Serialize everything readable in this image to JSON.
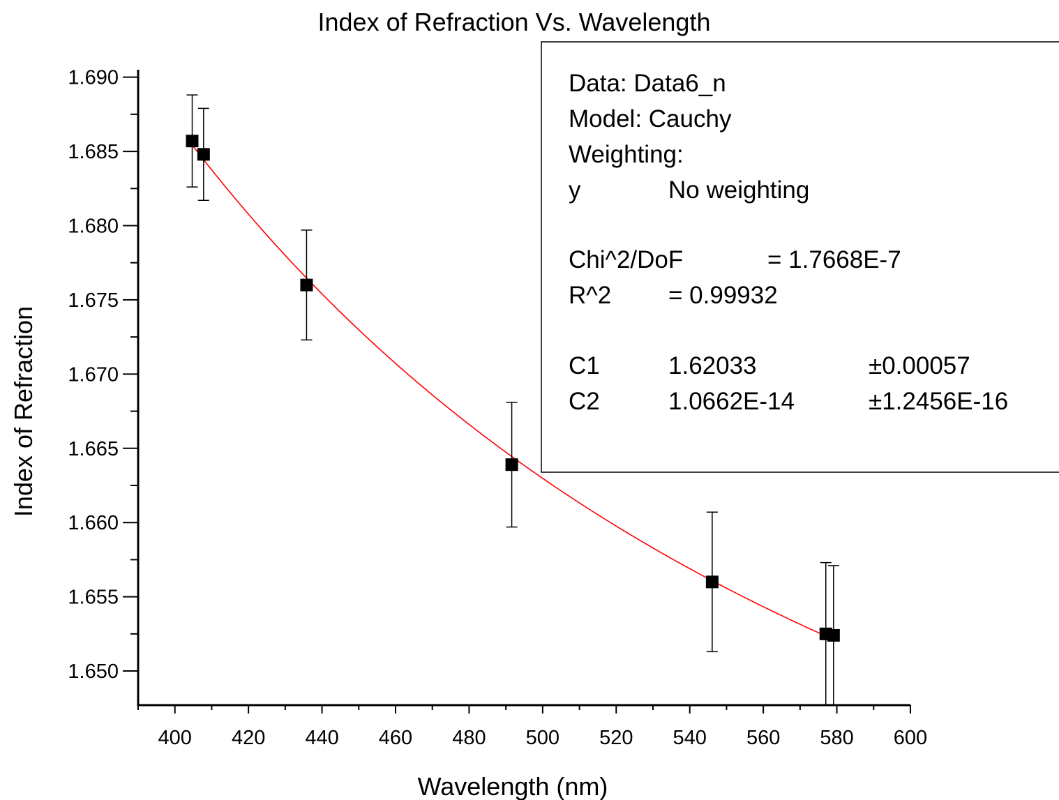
{
  "chart_data": {
    "type": "scatter",
    "title": "Index of Refraction Vs. Wavelength",
    "xlabel": "Wavelength (nm)",
    "ylabel": "Index of Refraction",
    "xlim": [
      390,
      600
    ],
    "ylim": [
      1.6477,
      1.6905
    ],
    "x_ticks": [
      400,
      420,
      440,
      460,
      480,
      500,
      520,
      540,
      560,
      580,
      600
    ],
    "x_tick_labels": [
      "400",
      "420",
      "440",
      "460",
      "480",
      "500",
      "520",
      "540",
      "560",
      "580",
      "600"
    ],
    "y_ticks": [
      1.65,
      1.655,
      1.66,
      1.665,
      1.67,
      1.675,
      1.68,
      1.685,
      1.69
    ],
    "y_tick_labels": [
      "1.650",
      "1.655",
      "1.660",
      "1.665",
      "1.670",
      "1.675",
      "1.680",
      "1.685",
      "1.690"
    ],
    "grid": false,
    "series": [
      {
        "type": "scatter",
        "marker": "square",
        "color": "#000000",
        "x": [
          404.7,
          407.8,
          435.8,
          491.6,
          546.1,
          577.0,
          579.1
        ],
        "y": [
          1.6857,
          1.6848,
          1.676,
          1.6639,
          1.656,
          1.6525,
          1.6524
        ],
        "y_err": [
          0.0031,
          0.0031,
          0.0037,
          0.0042,
          0.0047,
          0.0048,
          0.0047
        ]
      },
      {
        "type": "line",
        "color": "#ff0000",
        "model": "Cauchy",
        "x_range": [
          405,
          579
        ]
      }
    ],
    "fit": {
      "C1": 1.62033,
      "C2": 1.0662e-14
    },
    "legend_placement": "top-right"
  },
  "fit_box": {
    "data_line": "Data: Data6_n",
    "model_line": "Model: Cauchy",
    "weighting_line": "Weighting:",
    "weight_var": "y",
    "weight_value": "No weighting",
    "chi_label": "Chi^2/DoF",
    "chi_value": "= 1.7668E-7",
    "r2_label": "R^2",
    "r2_value": "=  0.99932",
    "params": [
      {
        "name": "C1",
        "value": "1.62033",
        "error": "±0.00057"
      },
      {
        "name": "C2",
        "value": "1.0662E-14",
        "error": "±1.2456E-16"
      }
    ]
  },
  "colors": {
    "fit_line": "#ff0000",
    "markers": "#000000",
    "axes": "#000000"
  }
}
